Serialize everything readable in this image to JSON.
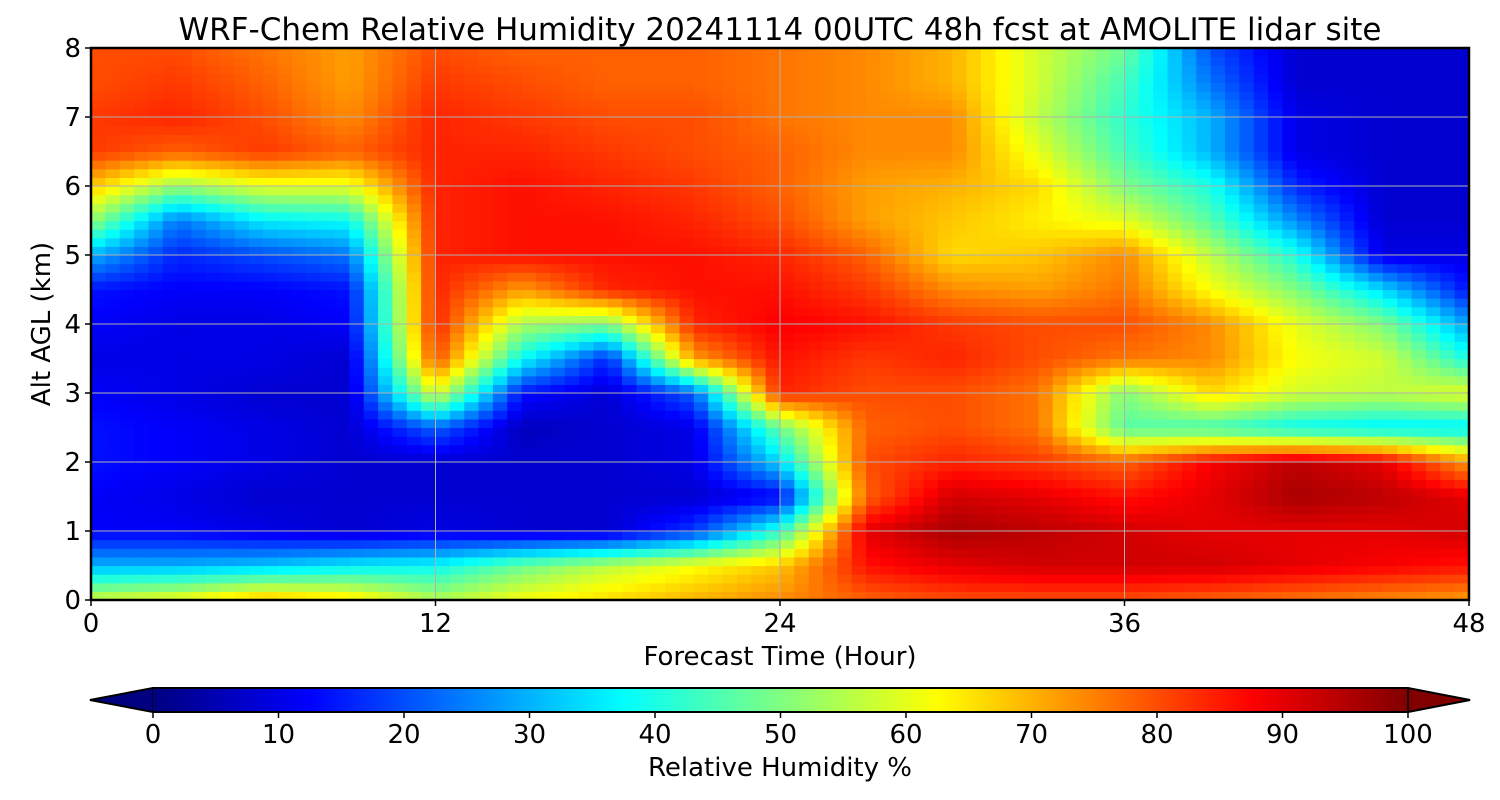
{
  "chart_data": {
    "type": "heatmap",
    "title": "WRF-Chem Relative Humidity 20241114 00UTC 48h fcst at AMOLITE lidar site",
    "xlabel": "Forecast Time (Hour)",
    "ylabel": "Alt AGL (km)",
    "xlim": [
      0,
      48
    ],
    "ylim": [
      0,
      8
    ],
    "x_ticks": [
      "0",
      "12",
      "24",
      "36",
      "48"
    ],
    "y_ticks": [
      "0",
      "1",
      "2",
      "3",
      "4",
      "5",
      "6",
      "7",
      "8"
    ],
    "grid": true,
    "colormap": "jet",
    "colorbar": {
      "label": "Relative Humidity %",
      "range": [
        0,
        100
      ],
      "ticks": [
        "0",
        "10",
        "20",
        "30",
        "40",
        "50",
        "60",
        "70",
        "80",
        "90",
        "100"
      ],
      "extend": "both",
      "orientation": "horizontal"
    },
    "x": [
      0,
      3,
      6,
      9,
      12,
      15,
      18,
      21,
      24,
      27,
      30,
      33,
      36,
      39,
      42,
      45,
      48
    ],
    "y": [
      0,
      0.5,
      1,
      1.5,
      2,
      2.5,
      3,
      3.5,
      4,
      4.5,
      5,
      5.5,
      6,
      6.5,
      7,
      7.5,
      8
    ],
    "z_description": "relative humidity % at (y row, x column)",
    "z": [
      [
        58,
        62,
        70,
        66,
        55,
        62,
        66,
        70,
        74,
        78,
        80,
        80,
        80,
        78,
        76,
        74,
        72
      ],
      [
        30,
        30,
        32,
        36,
        38,
        48,
        56,
        62,
        68,
        86,
        90,
        92,
        92,
        92,
        90,
        88,
        86
      ],
      [
        12,
        12,
        10,
        8,
        10,
        8,
        8,
        18,
        42,
        90,
        96,
        94,
        92,
        90,
        90,
        90,
        92
      ],
      [
        12,
        10,
        8,
        8,
        8,
        8,
        8,
        8,
        12,
        78,
        92,
        90,
        86,
        90,
        96,
        94,
        90
      ],
      [
        14,
        12,
        10,
        8,
        8,
        8,
        8,
        10,
        34,
        80,
        84,
        82,
        78,
        88,
        94,
        90,
        72
      ],
      [
        14,
        12,
        10,
        8,
        22,
        6,
        8,
        10,
        48,
        78,
        80,
        76,
        46,
        44,
        38,
        36,
        36
      ],
      [
        12,
        10,
        8,
        8,
        60,
        14,
        8,
        22,
        84,
        80,
        80,
        76,
        50,
        66,
        58,
        56,
        60
      ],
      [
        10,
        10,
        10,
        8,
        80,
        38,
        16,
        72,
        86,
        82,
        84,
        80,
        76,
        74,
        62,
        58,
        40
      ],
      [
        12,
        10,
        10,
        12,
        84,
        54,
        50,
        84,
        88,
        86,
        82,
        80,
        80,
        74,
        60,
        50,
        28
      ],
      [
        14,
        12,
        12,
        14,
        84,
        72,
        84,
        86,
        86,
        82,
        74,
        72,
        76,
        62,
        50,
        34,
        14
      ],
      [
        30,
        16,
        20,
        24,
        84,
        86,
        86,
        86,
        84,
        78,
        66,
        68,
        74,
        56,
        40,
        10,
        10
      ],
      [
        52,
        24,
        36,
        38,
        84,
        86,
        86,
        84,
        80,
        72,
        68,
        64,
        60,
        46,
        26,
        8,
        8
      ],
      [
        68,
        52,
        60,
        60,
        84,
        86,
        84,
        82,
        78,
        72,
        70,
        66,
        50,
        40,
        16,
        8,
        8
      ],
      [
        82,
        78,
        82,
        78,
        84,
        84,
        82,
        80,
        78,
        74,
        74,
        60,
        44,
        30,
        10,
        8,
        8
      ],
      [
        82,
        84,
        80,
        74,
        84,
        82,
        80,
        80,
        76,
        74,
        74,
        56,
        42,
        30,
        10,
        8,
        8
      ],
      [
        80,
        82,
        78,
        72,
        82,
        80,
        78,
        78,
        76,
        74,
        70,
        58,
        44,
        24,
        8,
        8,
        8
      ],
      [
        80,
        80,
        76,
        72,
        80,
        78,
        78,
        78,
        76,
        74,
        70,
        58,
        48,
        20,
        8,
        8,
        8
      ]
    ]
  }
}
